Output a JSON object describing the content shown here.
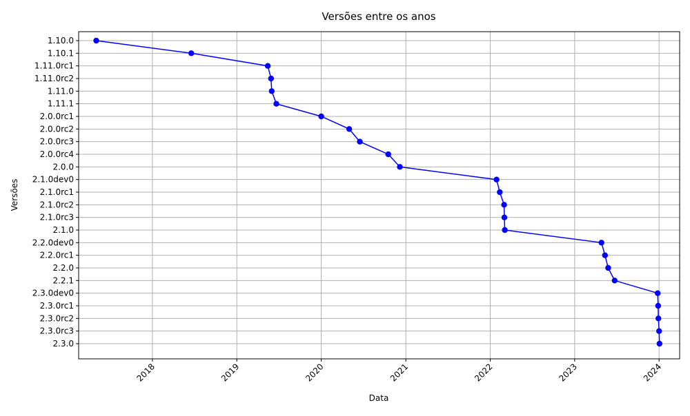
{
  "chart_data": {
    "type": "line",
    "title": "Versões entre os anos",
    "xlabel": "Data",
    "ylabel": "Versões",
    "grid": true,
    "line_color": "#0000ff",
    "marker": "circle",
    "x_ticks": [
      "2018",
      "2019",
      "2020",
      "2021",
      "2022",
      "2023",
      "2024"
    ],
    "xlim": [
      "2017-02-16",
      "2024-03-30"
    ],
    "categories": [
      "1.10.0",
      "1.10.1",
      "1.11.0rc1",
      "1.11.0rc2",
      "1.11.0",
      "1.11.1",
      "2.0.0rc1",
      "2.0.0rc2",
      "2.0.0rc3",
      "2.0.0rc4",
      "2.0.0",
      "2.1.0dev0",
      "2.1.0rc1",
      "2.1.0rc2",
      "2.1.0rc3",
      "2.1.0",
      "2.2.0dev0",
      "2.2.0rc1",
      "2.2.0",
      "2.2.1",
      "2.3.0dev0",
      "2.3.0rc1",
      "2.3.0rc2",
      "2.3.0rc3",
      "2.3.0"
    ],
    "series": [
      {
        "x": [
          "2017-05-03",
          "2018-06-18",
          "2019-05-15",
          "2019-05-29",
          "2019-06-01",
          "2019-06-21",
          "2020-01-01",
          "2020-05-01",
          "2020-06-16",
          "2020-10-17",
          "2020-12-06",
          "2022-01-28",
          "2022-02-11",
          "2022-03-02",
          "2022-03-03",
          "2022-03-05",
          "2023-04-27",
          "2023-05-12",
          "2023-05-26",
          "2023-06-23",
          "2023-12-26",
          "2023-12-28",
          "2023-12-29",
          "2024-01-01",
          "2024-01-03"
        ],
        "y": [
          "1.10.0",
          "1.10.1",
          "1.11.0rc1",
          "1.11.0rc2",
          "1.11.0",
          "1.11.1",
          "2.0.0rc1",
          "2.0.0rc2",
          "2.0.0rc3",
          "2.0.0rc4",
          "2.0.0",
          "2.1.0dev0",
          "2.1.0rc1",
          "2.1.0rc2",
          "2.1.0rc3",
          "2.1.0",
          "2.2.0dev0",
          "2.2.0rc1",
          "2.2.0",
          "2.2.1",
          "2.3.0dev0",
          "2.3.0rc1",
          "2.3.0rc2",
          "2.3.0rc3",
          "2.3.0"
        ]
      }
    ]
  }
}
